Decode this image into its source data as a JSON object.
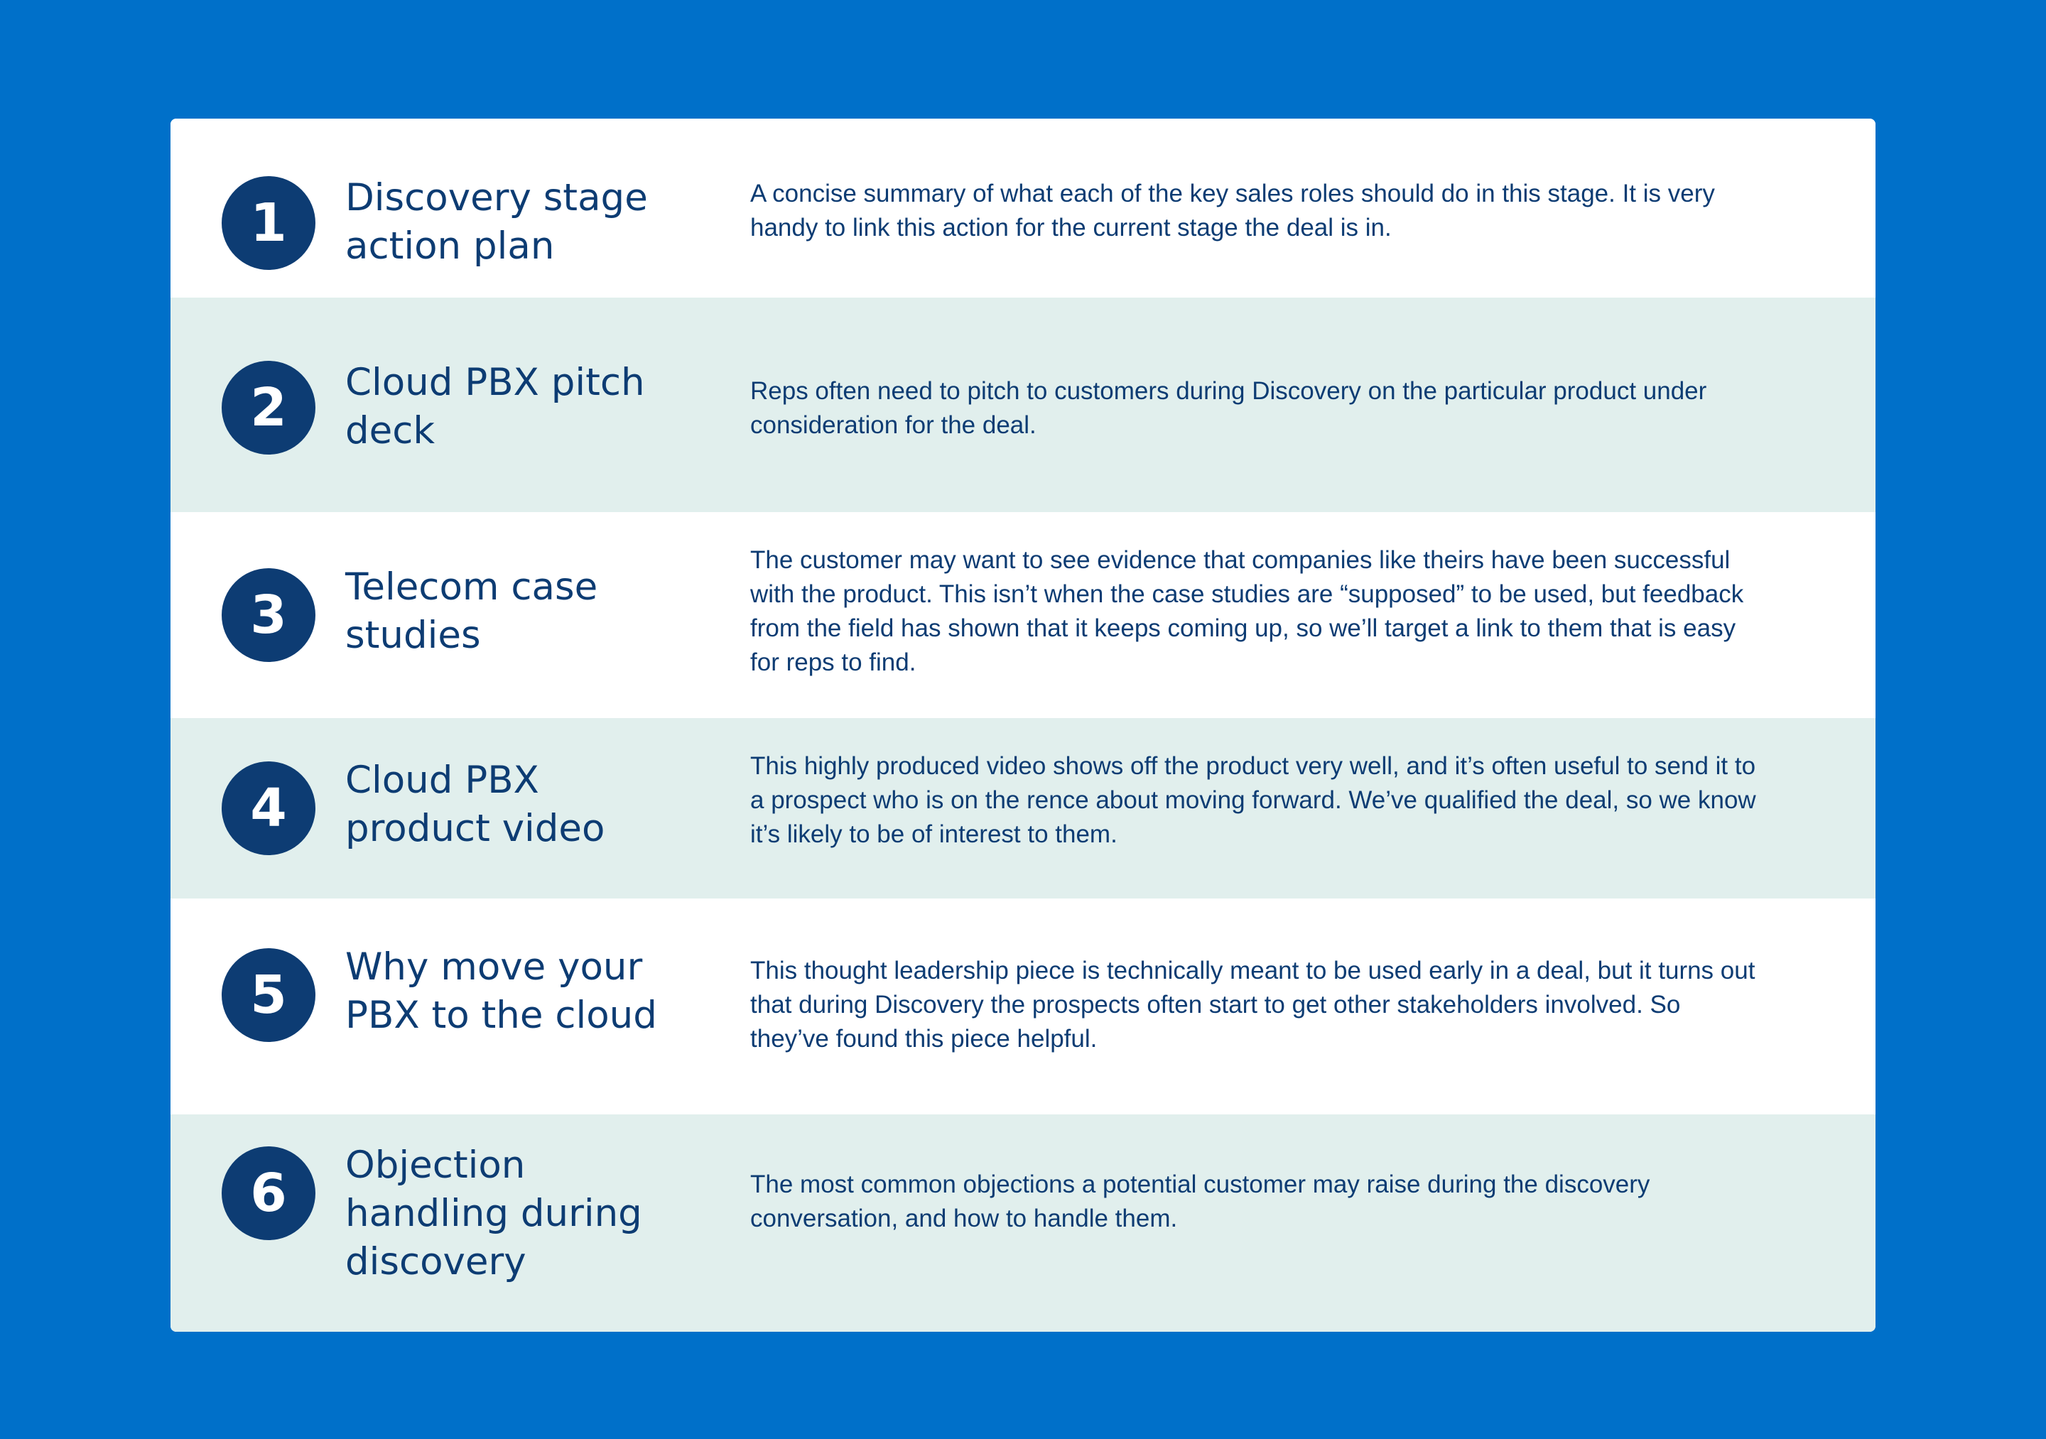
{
  "colors": {
    "background": "#0070c9",
    "card": "#ffffff",
    "row_tint": "#e1efed",
    "navy": "#0d3c73"
  },
  "items": [
    {
      "number": "1",
      "title": "Discovery stage\naction plan",
      "description": "A concise summary of what each of the key sales roles should do in this stage. It is very handy to link this action for the current stage the deal is in."
    },
    {
      "number": "2",
      "title": "Cloud PBX pitch\ndeck",
      "description": "Reps often need to pitch to customers during Discovery on the particular product under consideration for the deal."
    },
    {
      "number": "3",
      "title": "Telecom case\nstudies",
      "description": "The customer may want to see evidence that companies like theirs have been successful with the product. This isn’t when the case studies are “supposed” to be used, but feedback from the field has shown that it keeps coming up, so we’ll target a link to them that is easy for reps to find."
    },
    {
      "number": "4",
      "title": "Cloud PBX\nproduct video",
      "description": "This highly produced video shows off the product very well, and it’s often useful to send it to a prospect who is on the rence about moving forward. We’ve qualified the deal, so we know it’s likely to be of interest to them."
    },
    {
      "number": "5",
      "title": "Why move your\nPBX to the cloud",
      "description": "This thought leadership piece is technically meant to be used early in a deal, but it turns out that during Discovery the prospects often start to get other stakeholders involved. So they’ve found this piece helpful."
    },
    {
      "number": "6",
      "title": "Objection\nhandling during\ndiscovery",
      "description": "The most common objections a potential customer may raise during the discovery conversation, and how to handle them."
    }
  ]
}
